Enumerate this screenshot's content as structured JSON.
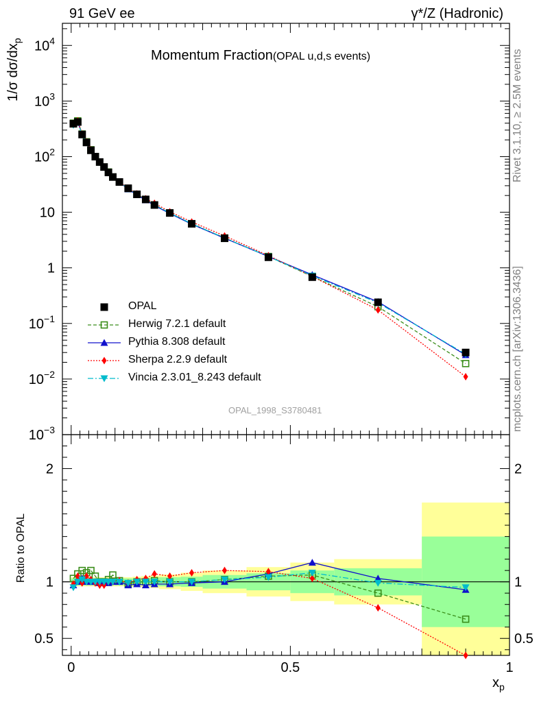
{
  "header": {
    "left": "91 GeV ee",
    "right": "γ*/Z (Hadronic)"
  },
  "side_texts": {
    "rivet": "Rivet 3.1.10, ≥ 2.5M events",
    "mcplots": "mcplots.cern.ch [arXiv:1306.3436]"
  },
  "chart_data": [
    {
      "panel": "main",
      "type": "scatter",
      "title_main": "Momentum Fraction",
      "title_sub": "(OPAL u,d,s events)",
      "watermark": "OPAL_1998_S3780481",
      "ylabel": "1/σ dσ/dx_p",
      "yscale": "log",
      "xlim": [
        -0.02,
        1.0
      ],
      "ylim": [
        0.001,
        25000
      ],
      "y_tick_labels": [
        "10^-3",
        "10^-2",
        "10^-1",
        "1",
        "10",
        "10^2",
        "10^3",
        "10^4"
      ],
      "legend_position": "left",
      "series": [
        {
          "name": "OPAL",
          "color": "#000000",
          "marker": "square",
          "line": "none",
          "x": [
            0.005,
            0.015,
            0.025,
            0.035,
            0.045,
            0.055,
            0.065,
            0.075,
            0.085,
            0.095,
            0.11,
            0.13,
            0.15,
            0.17,
            0.19,
            0.225,
            0.275,
            0.35,
            0.45,
            0.55,
            0.7,
            0.9
          ],
          "y": [
            390,
            420,
            250,
            180,
            130,
            100,
            80,
            65,
            52,
            43,
            35,
            27,
            21,
            17,
            13.5,
            9.7,
            6.2,
            3.4,
            1.55,
            0.68,
            0.24,
            0.03
          ]
        },
        {
          "name": "Herwig 7.2.1 default",
          "color": "#3a8d1a",
          "marker": "open-square",
          "line": "dashed",
          "x": [
            0.005,
            0.015,
            0.025,
            0.035,
            0.045,
            0.055,
            0.065,
            0.075,
            0.085,
            0.095,
            0.11,
            0.13,
            0.15,
            0.17,
            0.19,
            0.225,
            0.275,
            0.35,
            0.45,
            0.55,
            0.7,
            0.9
          ],
          "y": [
            400,
            440,
            255,
            185,
            133,
            100,
            80,
            65,
            53,
            43,
            35,
            26.5,
            21,
            17,
            13.5,
            9.7,
            6.2,
            3.45,
            1.6,
            0.7,
            0.2,
            0.019
          ]
        },
        {
          "name": "Pythia 8.308 default",
          "color": "#1010cc",
          "marker": "triangle-up",
          "line": "solid",
          "x": [
            0.005,
            0.015,
            0.025,
            0.035,
            0.045,
            0.055,
            0.065,
            0.075,
            0.085,
            0.095,
            0.11,
            0.13,
            0.15,
            0.17,
            0.19,
            0.225,
            0.275,
            0.35,
            0.45,
            0.55,
            0.7,
            0.9
          ],
          "y": [
            380,
            420,
            250,
            178,
            130,
            100,
            80,
            65,
            52,
            43,
            35,
            26,
            20.5,
            16.5,
            13.2,
            9.5,
            6.1,
            3.4,
            1.6,
            0.75,
            0.245,
            0.027
          ]
        },
        {
          "name": "Sherpa 2.2.9 default",
          "color": "#ff0000",
          "marker": "diamond",
          "line": "dotted",
          "x": [
            0.005,
            0.015,
            0.025,
            0.035,
            0.045,
            0.055,
            0.065,
            0.075,
            0.085,
            0.095,
            0.11,
            0.13,
            0.15,
            0.17,
            0.19,
            0.225,
            0.275,
            0.35,
            0.45,
            0.55,
            0.7,
            0.9
          ],
          "y": [
            395,
            440,
            255,
            185,
            133,
            100,
            80,
            65,
            52,
            43,
            35,
            27,
            21.5,
            17.5,
            14.5,
            10.2,
            6.7,
            3.75,
            1.66,
            0.7,
            0.175,
            0.011
          ]
        },
        {
          "name": "Vincia 2.3.01_8.243 default",
          "color": "#00bbcc",
          "marker": "triangle-down",
          "line": "dashdot",
          "x": [
            0.005,
            0.015,
            0.025,
            0.035,
            0.045,
            0.055,
            0.065,
            0.075,
            0.085,
            0.095,
            0.11,
            0.13,
            0.15,
            0.17,
            0.19,
            0.225,
            0.275,
            0.35,
            0.45,
            0.55,
            0.7,
            0.9
          ],
          "y": [
            370,
            415,
            250,
            180,
            130,
            100,
            80,
            65,
            52,
            43,
            35,
            26.5,
            21,
            17,
            13.5,
            9.7,
            6.2,
            3.45,
            1.6,
            0.72,
            0.235,
            0.028
          ]
        }
      ]
    },
    {
      "panel": "ratio",
      "type": "line",
      "ylabel": "Ratio to OPAL",
      "xlabel": "x_p",
      "xlim": [
        -0.02,
        1.0
      ],
      "ylim": [
        0.35,
        2.3
      ],
      "x_tick_labels": [
        "0",
        "0.5",
        "1"
      ],
      "y_tick_labels": [
        "0.5",
        "1",
        "2"
      ],
      "reference_line": 1,
      "uncertainty_bands": {
        "edges": [
          0.0,
          0.01,
          0.02,
          0.03,
          0.04,
          0.05,
          0.06,
          0.07,
          0.08,
          0.09,
          0.1,
          0.12,
          0.14,
          0.16,
          0.18,
          0.2,
          0.25,
          0.3,
          0.4,
          0.5,
          0.6,
          0.8,
          1.0
        ],
        "inner_color": "#99ff99",
        "outer_color": "#ffff99",
        "inner": [
          0.03,
          0.03,
          0.03,
          0.03,
          0.03,
          0.03,
          0.03,
          0.03,
          0.03,
          0.03,
          0.03,
          0.03,
          0.03,
          0.03,
          0.035,
          0.04,
          0.045,
          0.06,
          0.075,
          0.1,
          0.12,
          0.4
        ],
        "outer": [
          0.04,
          0.04,
          0.04,
          0.04,
          0.04,
          0.04,
          0.04,
          0.04,
          0.04,
          0.04,
          0.04,
          0.04,
          0.045,
          0.05,
          0.055,
          0.065,
          0.08,
          0.1,
          0.13,
          0.17,
          0.2,
          0.7
        ]
      },
      "series": [
        {
          "name": "Herwig 7.2.1 default",
          "color": "#3a8d1a",
          "x": [
            0.005,
            0.015,
            0.025,
            0.035,
            0.045,
            0.055,
            0.065,
            0.075,
            0.085,
            0.095,
            0.11,
            0.13,
            0.15,
            0.17,
            0.19,
            0.225,
            0.275,
            0.35,
            0.45,
            0.55,
            0.7,
            0.9
          ],
          "y": [
            1.03,
            1.07,
            1.1,
            1.08,
            1.1,
            1.05,
            1.0,
            1.0,
            1.02,
            1.06,
            1.01,
            0.98,
            1.0,
            1.0,
            1.01,
            1.0,
            1.0,
            1.02,
            1.05,
            1.06,
            0.9,
            0.67
          ]
        },
        {
          "name": "Pythia 8.308 default",
          "color": "#1010cc",
          "x": [
            0.005,
            0.015,
            0.025,
            0.035,
            0.045,
            0.055,
            0.065,
            0.075,
            0.085,
            0.095,
            0.11,
            0.13,
            0.15,
            0.17,
            0.19,
            0.225,
            0.275,
            0.35,
            0.45,
            0.55,
            0.7,
            0.9
          ],
          "y": [
            0.97,
            1.0,
            1.03,
            1.0,
            1.0,
            1.0,
            0.99,
            0.99,
            0.99,
            1.0,
            1.0,
            0.97,
            0.98,
            0.97,
            0.98,
            0.98,
            0.99,
            1.0,
            1.07,
            1.17,
            1.03,
            0.93
          ]
        },
        {
          "name": "Sherpa 2.2.9 default",
          "color": "#ff0000",
          "x": [
            0.005,
            0.015,
            0.025,
            0.035,
            0.045,
            0.055,
            0.065,
            0.075,
            0.085,
            0.095,
            0.11,
            0.13,
            0.15,
            0.17,
            0.19,
            0.225,
            0.275,
            0.35,
            0.45,
            0.55,
            0.7,
            0.9
          ],
          "y": [
            0.98,
            1.05,
            0.99,
            1.05,
            1.02,
            0.99,
            0.97,
            0.97,
            1.0,
            1.0,
            1.01,
            0.99,
            1.02,
            1.03,
            1.07,
            1.05,
            1.08,
            1.1,
            1.09,
            1.03,
            0.77,
            0.35
          ]
        },
        {
          "name": "Vincia 2.3.01_8.243 default",
          "color": "#00bbcc",
          "x": [
            0.005,
            0.015,
            0.025,
            0.035,
            0.045,
            0.055,
            0.065,
            0.075,
            0.085,
            0.095,
            0.11,
            0.13,
            0.15,
            0.17,
            0.19,
            0.225,
            0.275,
            0.35,
            0.45,
            0.55,
            0.7,
            0.9
          ],
          "y": [
            0.95,
            1.0,
            1.02,
            1.0,
            1.0,
            1.0,
            1.0,
            1.0,
            1.0,
            1.0,
            1.0,
            0.99,
            1.0,
            1.0,
            1.0,
            1.0,
            1.0,
            1.02,
            1.04,
            1.08,
            0.99,
            0.95
          ]
        }
      ]
    }
  ]
}
